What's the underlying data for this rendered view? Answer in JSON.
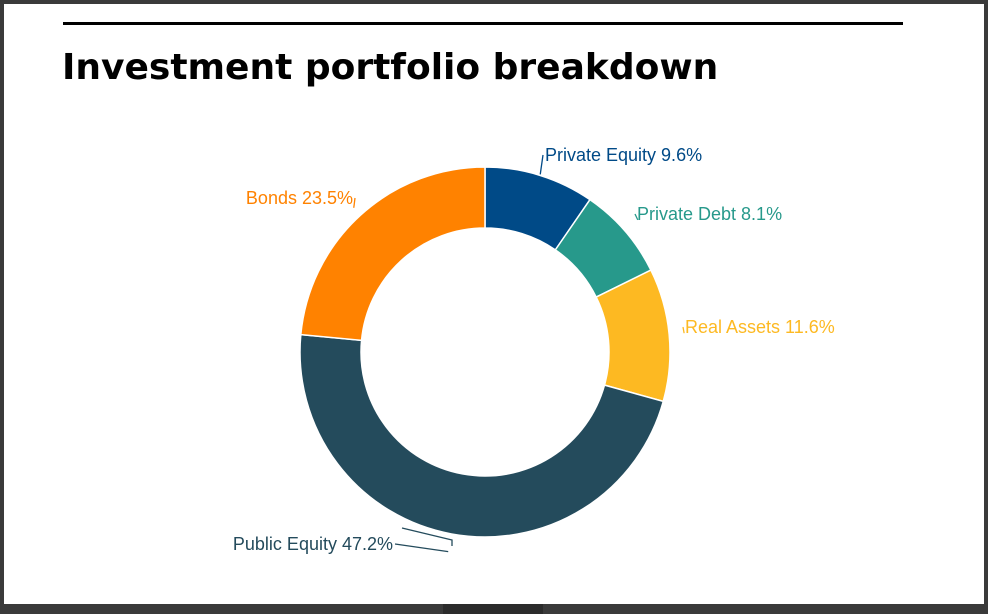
{
  "title": "Investment portfolio breakdown",
  "chart_data": {
    "type": "pie",
    "variant": "donut",
    "title": "Investment portfolio breakdown",
    "start": "12 o'clock, clockwise",
    "unit": "%",
    "slices": [
      {
        "label": "Private Equity",
        "value": 9.6,
        "color": "#004a87",
        "label_text": "Private Equity 9.6%"
      },
      {
        "label": "Private Debt",
        "value": 8.1,
        "color": "#27998b",
        "label_text": "Private Debt 8.1%"
      },
      {
        "label": "Real Assets",
        "value": 11.6,
        "color": "#fdb922",
        "label_text": "Real Assets 11.6%"
      },
      {
        "label": "Public Equity",
        "value": 47.2,
        "color": "#244b5c",
        "label_text": "Public Equity 47.2%"
      },
      {
        "label": "Bonds",
        "value": 23.5,
        "color": "#ff8200",
        "label_text": "Bonds 23.5%"
      }
    ],
    "legend": "none (labels on slices)"
  }
}
